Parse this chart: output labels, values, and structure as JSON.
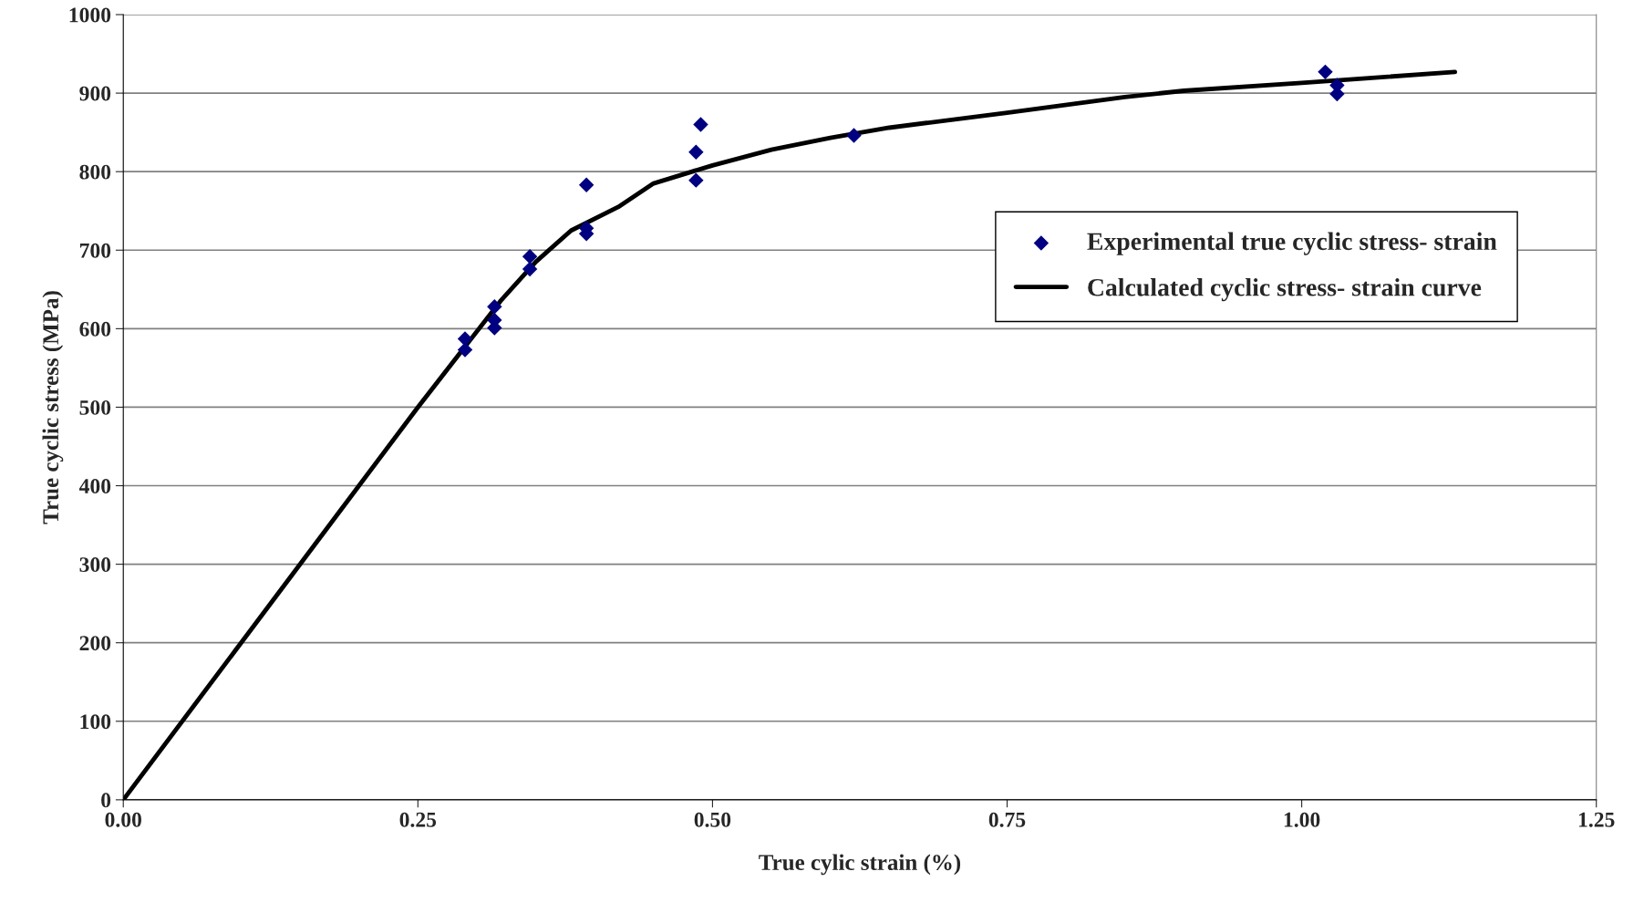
{
  "chart_data": {
    "type": "scatter",
    "xlabel": "True cylic strain (%)",
    "ylabel": "True cyclic stress (MPa)",
    "xlim": [
      0,
      1.25
    ],
    "xticks": [
      {
        "value": 0,
        "label": "0.00"
      },
      {
        "value": 0.25,
        "label": "0.25"
      },
      {
        "value": 0.5,
        "label": "0.50"
      },
      {
        "value": 0.75,
        "label": "0.75"
      },
      {
        "value": 1.0,
        "label": "1.00"
      },
      {
        "value": 1.25,
        "label": "1.25"
      }
    ],
    "ylim": [
      0,
      1000
    ],
    "yticks": [
      0,
      100,
      200,
      300,
      400,
      500,
      600,
      700,
      800,
      900,
      1000
    ],
    "grid": "y",
    "legend": "top right",
    "series": [
      {
        "name": "Experimental true cyclic stress- strain",
        "marker": "diamond",
        "color": "#000080",
        "x": [
          0.29,
          0.29,
          0.315,
          0.315,
          0.315,
          0.345,
          0.345,
          0.393,
          0.393,
          0.393,
          0.486,
          0.486,
          0.49,
          0.62,
          1.02,
          1.03,
          1.03
        ],
        "values": [
          587,
          573,
          628,
          611,
          601,
          692,
          676,
          783,
          728,
          721,
          825,
          789,
          860,
          846,
          927,
          910,
          899
        ]
      },
      {
        "name": "Calculated cyclic stress- strain curve",
        "type": "line",
        "marker": "none",
        "line_style": "solid",
        "color": "#000000",
        "x": [
          0,
          0.1,
          0.2,
          0.25,
          0.32,
          0.35,
          0.38,
          0.42,
          0.45,
          0.5,
          0.55,
          0.6,
          0.65,
          0.75,
          0.85,
          0.9,
          1.0,
          1.13
        ],
        "values": [
          0,
          200,
          400,
          500,
          635,
          685,
          725,
          755,
          785,
          808,
          828,
          843,
          856,
          875,
          895,
          903,
          913,
          927
        ]
      }
    ]
  }
}
